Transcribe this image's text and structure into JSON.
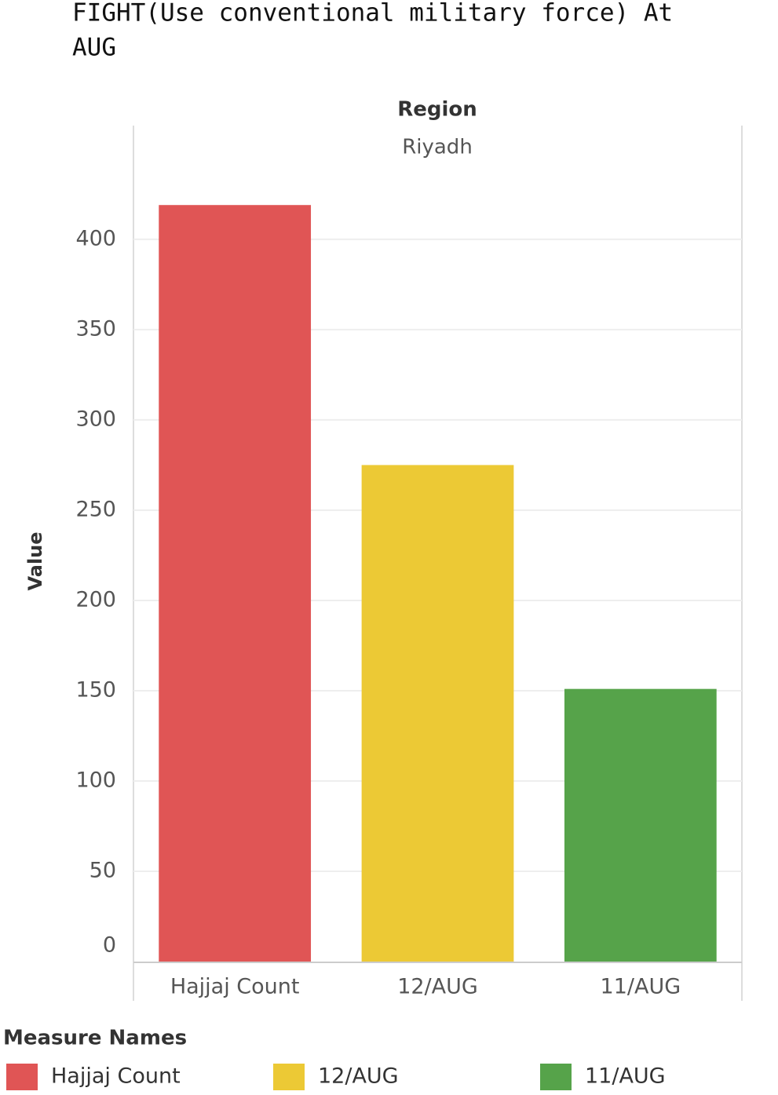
{
  "chart_data": {
    "type": "bar",
    "title": [
      "FIGHT(Use conventional military force) At",
      "AUG"
    ],
    "header_title": "Region",
    "header_value": "Riyadh",
    "y_label": "Value",
    "legend_title": "Measure Names",
    "categories": [
      "Hajjaj Count",
      "12/AUG",
      "11/AUG"
    ],
    "values": [
      419,
      275,
      151
    ],
    "colors": [
      "#e05555",
      "#ecc935",
      "#56a34a"
    ],
    "ylim": [
      0,
      463
    ],
    "yticks": [
      0,
      50,
      100,
      150,
      200,
      250,
      300,
      350,
      400
    ],
    "grid": true
  }
}
